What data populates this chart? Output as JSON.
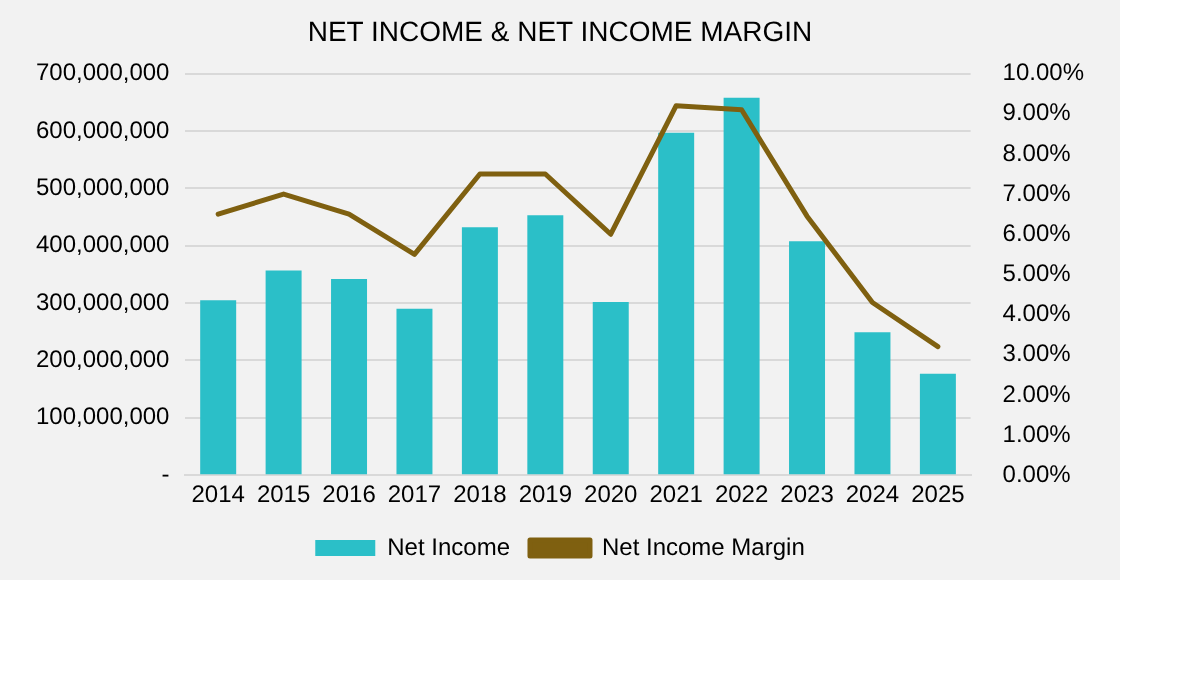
{
  "chart_data": {
    "type": "bar",
    "title": "NET INCOME & NET INCOME MARGIN",
    "categories": [
      "2014",
      "2015",
      "2016",
      "2017",
      "2018",
      "2019",
      "2020",
      "2021",
      "2022",
      "2023",
      "2024",
      "2025"
    ],
    "series": [
      {
        "name": "Net Income",
        "color": "#2bbfc8",
        "values": [
          305000000,
          357000000,
          342000000,
          290000000,
          432000000,
          453000000,
          302000000,
          597000000,
          658000000,
          408000000,
          249000000,
          177000000
        ]
      },
      {
        "name": "Net Income Margin",
        "type": "line",
        "axis": "y2",
        "color": "#7f6010",
        "values": [
          6.5,
          7.0,
          6.5,
          5.5,
          7.5,
          7.5,
          6.0,
          9.2,
          9.1,
          6.45,
          4.3,
          3.2
        ]
      }
    ],
    "ylim": [
      0,
      700000000
    ],
    "yticks": [
      {
        "value": 0,
        "label": "-"
      },
      {
        "value": 100000000,
        "label": "100,000,000"
      },
      {
        "value": 200000000,
        "label": "200,000,000"
      },
      {
        "value": 300000000,
        "label": "300,000,000"
      },
      {
        "value": 400000000,
        "label": "400,000,000"
      },
      {
        "value": 500000000,
        "label": "500,000,000"
      },
      {
        "value": 600000000,
        "label": "600,000,000"
      },
      {
        "value": 700000000,
        "label": "700,000,000"
      }
    ],
    "y2lim": [
      0,
      10
    ],
    "y2ticks": [
      {
        "value": 0,
        "label": "0.00%"
      },
      {
        "value": 1,
        "label": "1.00%"
      },
      {
        "value": 2,
        "label": "2.00%"
      },
      {
        "value": 3,
        "label": "3.00%"
      },
      {
        "value": 4,
        "label": "4.00%"
      },
      {
        "value": 5,
        "label": "5.00%"
      },
      {
        "value": 6,
        "label": "6.00%"
      },
      {
        "value": 7,
        "label": "7.00%"
      },
      {
        "value": 8,
        "label": "8.00%"
      },
      {
        "value": 9,
        "label": "9.00%"
      },
      {
        "value": 10,
        "label": "10.00%"
      }
    ],
    "grid": "y",
    "legend": "bottom",
    "marker": "none",
    "line_style": "solid"
  }
}
